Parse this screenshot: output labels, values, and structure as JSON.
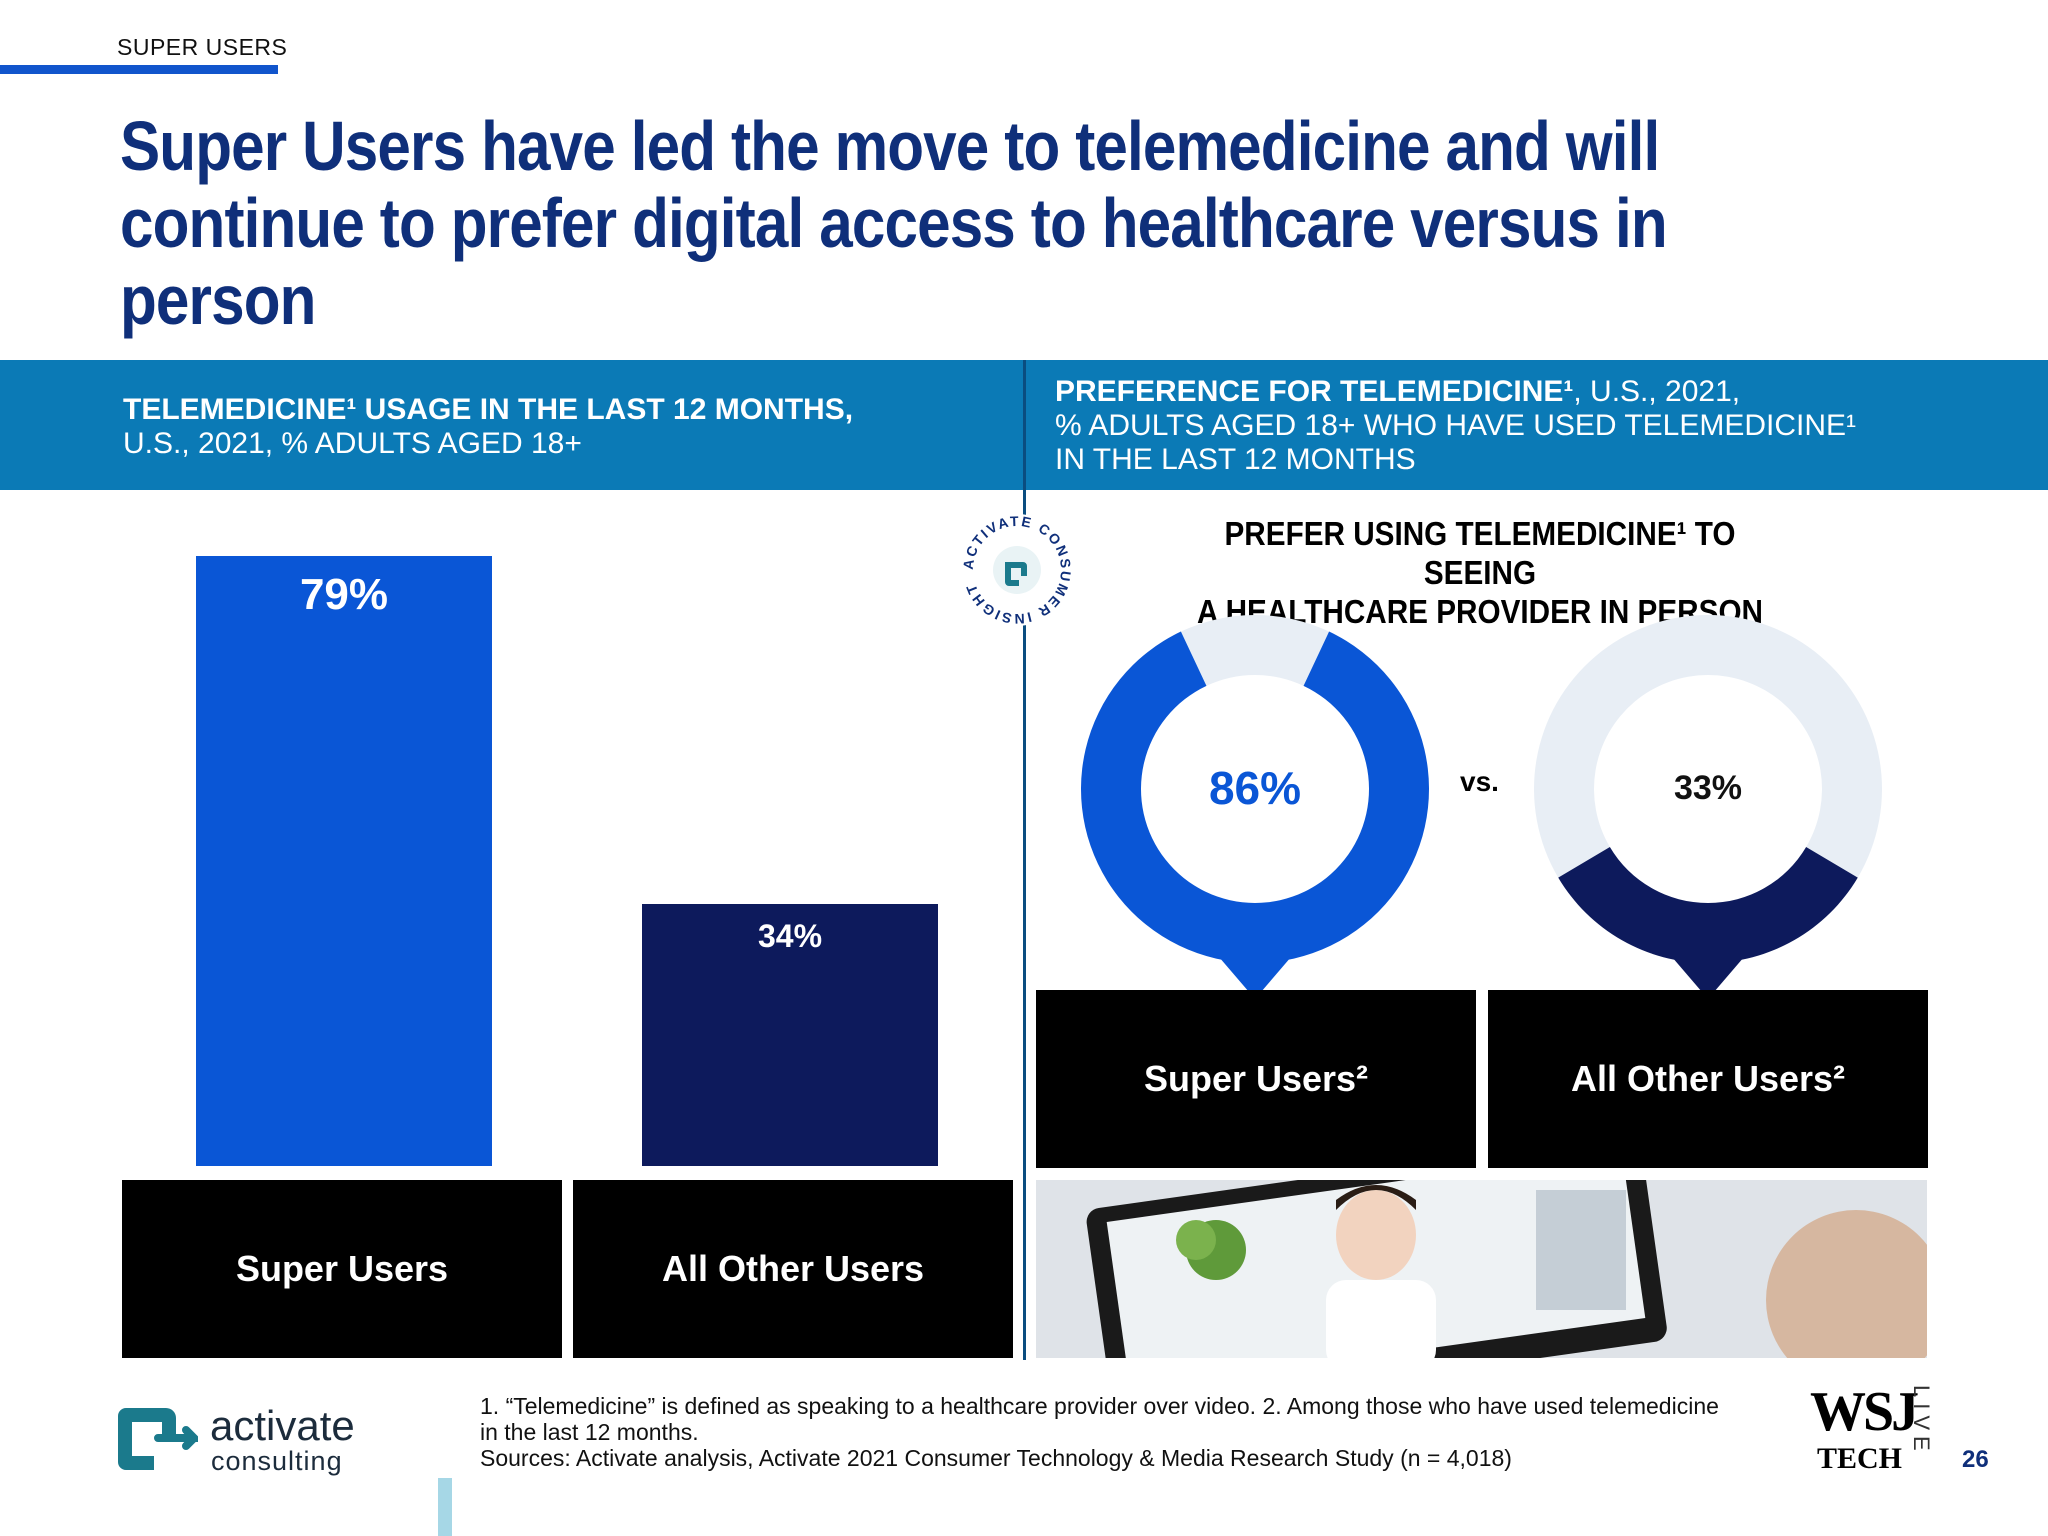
{
  "section_tag": "SUPER USERS",
  "headline": "Super Users have led the move to telemedicine and will continue to prefer digital access to healthcare versus in person",
  "left_panel": {
    "title_bold": "TELEMEDICINE¹ USAGE IN THE LAST 12 MONTHS,",
    "title_rest": "U.S., 2021, % ADULTS AGED 18+"
  },
  "right_panel": {
    "title_bold": "PREFERENCE FOR TELEMEDICINE¹",
    "title_line1_rest": ", U.S., 2021,",
    "title_line2": "% ADULTS AGED 18+ WHO HAVE USED TELEMEDICINE¹",
    "title_line3": "IN THE LAST 12 MONTHS",
    "subtitle_line1": "PREFER USING TELEMEDICINE¹ TO SEEING",
    "subtitle_line2": "A HEALTHCARE PROVIDER IN PERSON",
    "vs_label": "vs."
  },
  "badge": {
    "ring_text": "ACTIVATE CONSUMER INSIGHT"
  },
  "chart_data": [
    {
      "type": "bar",
      "categories": [
        "Super Users",
        "All Other Users"
      ],
      "values": [
        79,
        34
      ],
      "value_labels": [
        "79%",
        "34%"
      ],
      "ylim": [
        0,
        100
      ],
      "colors": [
        "#0a56d6",
        "#0d1a5c"
      ]
    },
    {
      "type": "pie",
      "categories": [
        "Super Users²",
        "All Other Users²"
      ],
      "values": [
        86,
        33
      ],
      "value_labels": [
        "86%",
        "33%"
      ],
      "colors": [
        "#0a56d6",
        "#0d1a5c"
      ],
      "track_color": "#e8eef5"
    }
  ],
  "footnote_line1": "1. “Telemedicine” is defined as speaking to a healthcare provider over video.  2. Among those who have used telemedicine",
  "footnote_line2": "in the last 12 months.",
  "footnote_line3": "Sources: Activate analysis, Activate 2021 Consumer Technology & Media Research Study (n = 4,018)",
  "logo": {
    "word": "activate",
    "sub": "consulting"
  },
  "wsj": {
    "mark": "WSJ",
    "tech": "TECH",
    "live": "LIVE"
  },
  "page_number": "26",
  "colors": {
    "navy": "#0f2f7a",
    "band": "#0b7ab6",
    "bright_blue": "#0a56d6",
    "dark_navy": "#0d1a5c"
  }
}
